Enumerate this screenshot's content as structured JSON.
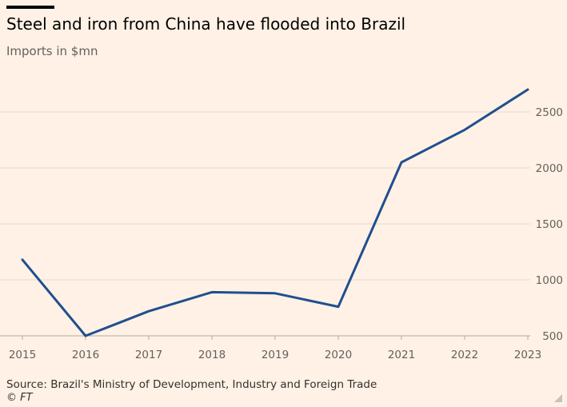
{
  "chart_data": {
    "type": "line",
    "title": "Steel and iron from China have flooded into Brazil",
    "subtitle": "Imports in $mn",
    "xlabel": "",
    "ylabel": "",
    "x": [
      "2015",
      "2016",
      "2017",
      "2018",
      "2019",
      "2020",
      "2021",
      "2022",
      "2023"
    ],
    "series": [
      {
        "values": [
          1180,
          500,
          720,
          890,
          880,
          760,
          2050,
          2340,
          2700
        ]
      }
    ],
    "yticks": [
      "500",
      "1000",
      "1500",
      "2000",
      "2500"
    ],
    "ylim": [
      500,
      2750
    ],
    "grid": true,
    "y_axis_position": "right",
    "line_color": "#1F4F8F",
    "grid_color": "#E6D9CE"
  },
  "source": "Source: Brazil's Ministry of Development, Industry and Foreign Trade",
  "copyright": "© FT"
}
